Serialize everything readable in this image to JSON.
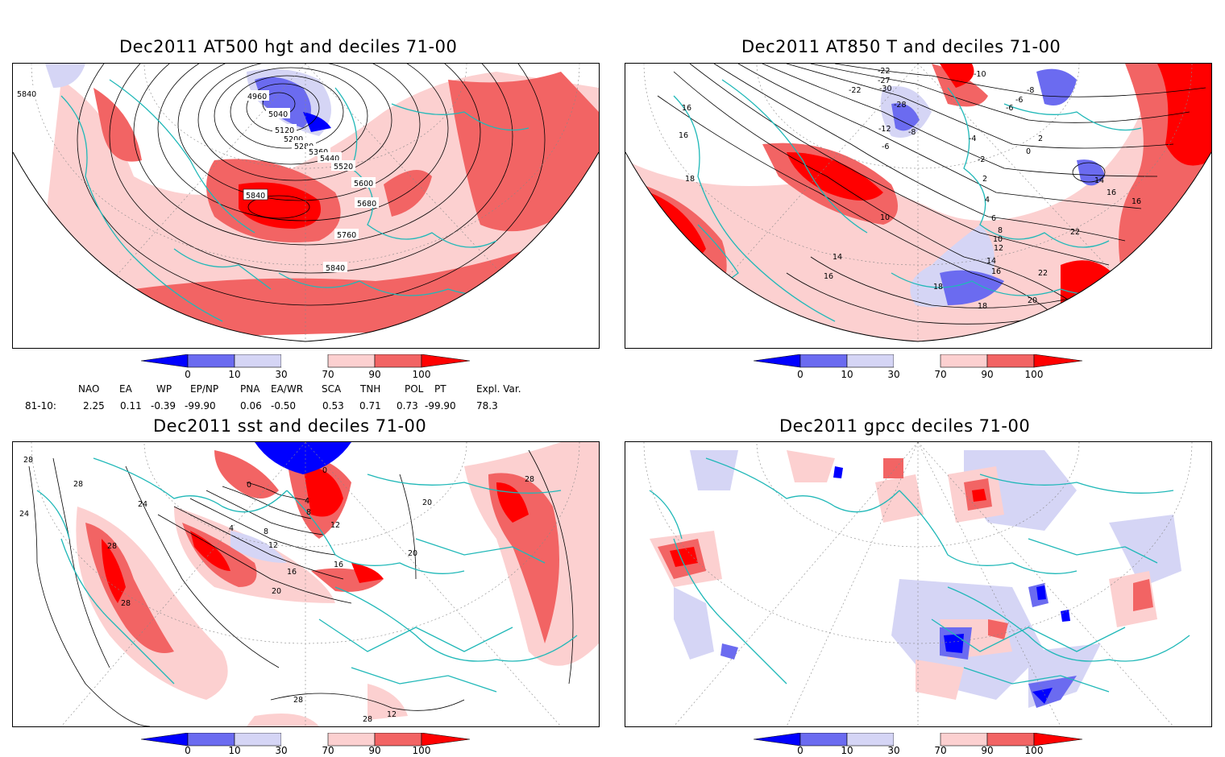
{
  "panels": [
    {
      "title": "Dec2011 AT500 hgt and deciles 71-00",
      "contour_labels": [
        "5840",
        "4960",
        "5040",
        "5120",
        "5200",
        "5280",
        "5360",
        "5440",
        "5520",
        "5600",
        "5680",
        "5760",
        "5840",
        "5840"
      ]
    },
    {
      "title": "Dec2011 AT850 T and deciles 71-00",
      "contour_labels": [
        "16",
        "16",
        "18",
        "-22",
        "-22",
        "-27",
        "-30",
        "-28",
        "-10",
        "-8",
        "-6",
        "-6",
        "-12",
        "-8",
        "-6",
        "-4",
        "-2",
        "0",
        "2",
        "2",
        "4",
        "6",
        "8",
        "10",
        "10",
        "12",
        "14",
        "14",
        "16",
        "16",
        "16",
        "18",
        "18",
        "20",
        "22",
        "22",
        "14",
        "16"
      ]
    },
    {
      "title": "Dec2011 sst and deciles 71-00",
      "contour_labels": [
        "28",
        "28",
        "24",
        "24",
        "28",
        "28",
        "0",
        "0",
        "4",
        "8",
        "12",
        "16",
        "20",
        "4",
        "8",
        "12",
        "16",
        "20",
        "28",
        "20",
        "28",
        "28",
        "12"
      ]
    },
    {
      "title": "Dec2011 gpcc deciles 71-00",
      "contour_labels": []
    }
  ],
  "colorbar": {
    "ticks": [
      "0",
      "10",
      "30",
      "70",
      "90",
      "100"
    ],
    "colors": [
      "#0000ff",
      "#6b6bf0",
      "#d5d5f5",
      "#ffffff",
      "#fcd0d0",
      "#f26464",
      "#ff0000"
    ]
  },
  "indices": {
    "headers": [
      "NAO",
      "EA",
      "WP",
      "EP/NP",
      "PNA",
      "EA/WR",
      "SCA",
      "TNH",
      "POL",
      "PT",
      "Expl. Var."
    ],
    "row_label": "81-10:",
    "values": [
      "2.25",
      "0.11",
      "-0.39",
      "-99.90",
      "0.06",
      "-0.50",
      "0.53",
      "0.71",
      "0.73",
      "-99.90",
      "78.3"
    ]
  }
}
